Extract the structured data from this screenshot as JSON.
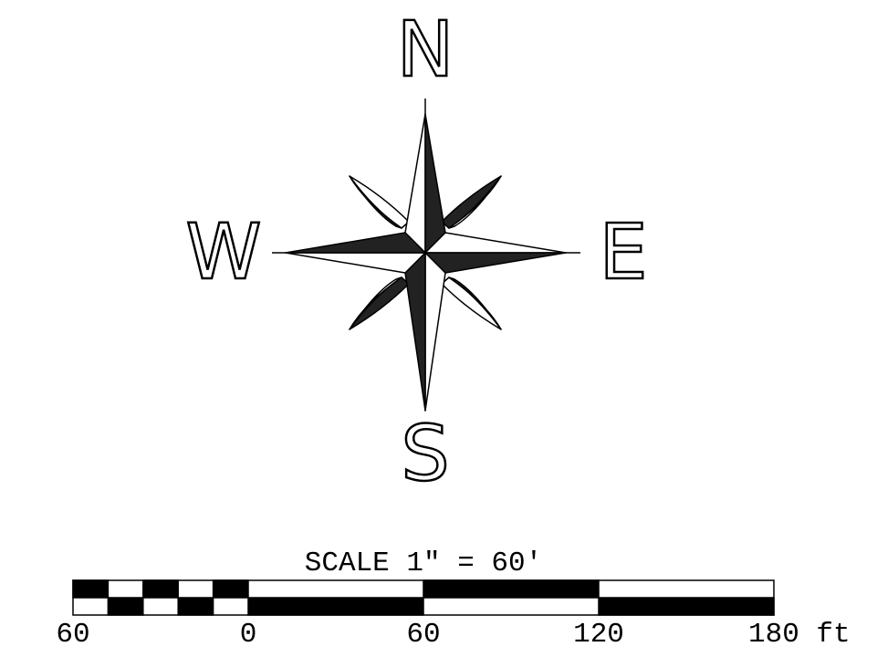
{
  "compass": {
    "north": "N",
    "south": "S",
    "east": "E",
    "west": "W"
  },
  "scale_bar": {
    "title": "SCALE 1\" = 60'",
    "labels": [
      "60",
      "0",
      "60",
      "120",
      "180 ft"
    ]
  }
}
